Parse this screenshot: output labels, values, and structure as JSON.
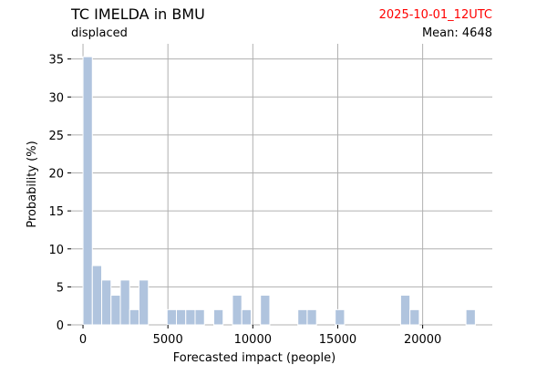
{
  "header": {
    "title": "TC IMELDA in BMU",
    "subtitle": "displaced",
    "date": "2025-10-01_12UTC",
    "mean": "Mean: 4648"
  },
  "chart_data": {
    "type": "bar",
    "xlabel": "Forecasted impact (people)",
    "ylabel": "Probability (%)",
    "xlim": [
      -700,
      24100
    ],
    "ylim": [
      0,
      37
    ],
    "x_ticks": [
      0,
      5000,
      10000,
      15000,
      20000
    ],
    "y_ticks": [
      0,
      5,
      10,
      15,
      20,
      25,
      30,
      35
    ],
    "grid": true,
    "bin_width": 550,
    "bins": [
      {
        "x": 0,
        "value": 35.3
      },
      {
        "x": 550,
        "value": 7.8
      },
      {
        "x": 1100,
        "value": 5.9
      },
      {
        "x": 1650,
        "value": 3.9
      },
      {
        "x": 2200,
        "value": 5.9
      },
      {
        "x": 2750,
        "value": 2.0
      },
      {
        "x": 3300,
        "value": 5.9
      },
      {
        "x": 4950,
        "value": 2.0
      },
      {
        "x": 5500,
        "value": 2.0
      },
      {
        "x": 6050,
        "value": 2.0
      },
      {
        "x": 6600,
        "value": 2.0
      },
      {
        "x": 7700,
        "value": 2.0
      },
      {
        "x": 8800,
        "value": 3.9
      },
      {
        "x": 9350,
        "value": 2.0
      },
      {
        "x": 10450,
        "value": 3.9
      },
      {
        "x": 12650,
        "value": 2.0
      },
      {
        "x": 13200,
        "value": 2.0
      },
      {
        "x": 14850,
        "value": 2.0
      },
      {
        "x": 18700,
        "value": 3.9
      },
      {
        "x": 19250,
        "value": 2.0
      },
      {
        "x": 22550,
        "value": 2.0
      }
    ]
  }
}
